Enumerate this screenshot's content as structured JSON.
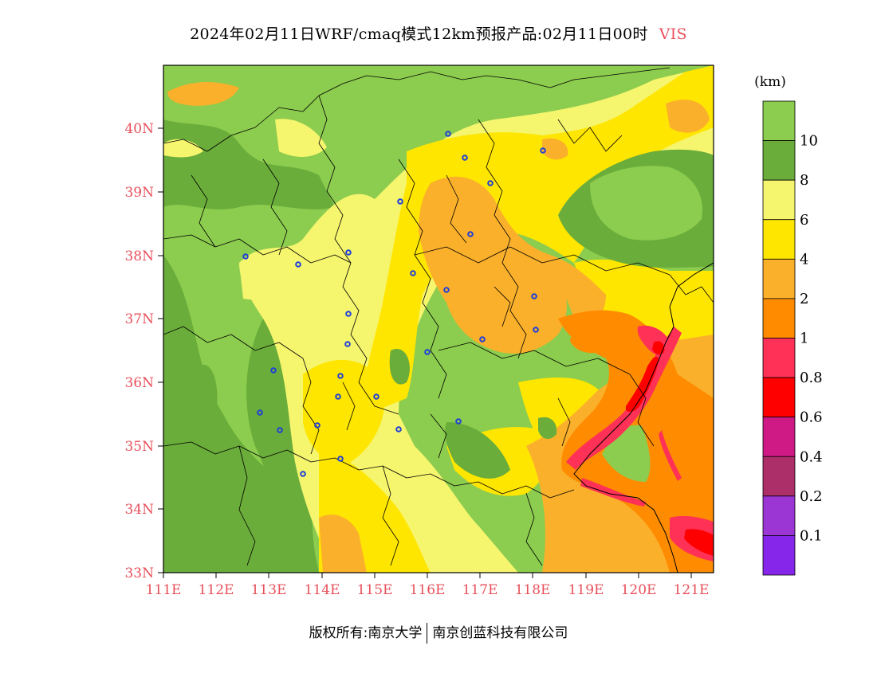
{
  "header": {
    "title": "2024年02月11日WRF/cmaq模式12km预报产品:02月11日00时",
    "variable": "VIS"
  },
  "footer": {
    "copyright": "版权所有:南京大学",
    "company": "南京创蓝科技有限公司"
  },
  "map": {
    "lat_labels": [
      "33N",
      "34N",
      "35N",
      "36N",
      "37N",
      "38N",
      "39N",
      "40N"
    ],
    "lon_labels": [
      "111E",
      "112E",
      "113E",
      "114E",
      "115E",
      "116E",
      "117E",
      "118E",
      "119E",
      "120E",
      "121E"
    ],
    "lat_range": [
      33,
      41
    ],
    "lon_range": [
      111,
      121.4
    ],
    "axis_label_color": "#e8505b"
  },
  "legend": {
    "unit": "(km)",
    "levels": [
      {
        "label": "10",
        "color": "#8ccc4e"
      },
      {
        "label": "8",
        "color": "#6aad3a"
      },
      {
        "label": "6",
        "color": "#f5f56e"
      },
      {
        "label": "4",
        "color": "#ffe600"
      },
      {
        "label": "2",
        "color": "#fbb02b"
      },
      {
        "label": "1",
        "color": "#ff8c00"
      },
      {
        "label": "0.8",
        "color": "#ff3156"
      },
      {
        "label": "0.6",
        "color": "#ff0000"
      },
      {
        "label": "0.4",
        "color": "#cf1a86"
      },
      {
        "label": "0.2",
        "color": "#ad2f6a"
      },
      {
        "label": "0.1",
        "color": "#9b35d4"
      },
      {
        "label": "",
        "color": "#8626ea"
      }
    ]
  }
}
